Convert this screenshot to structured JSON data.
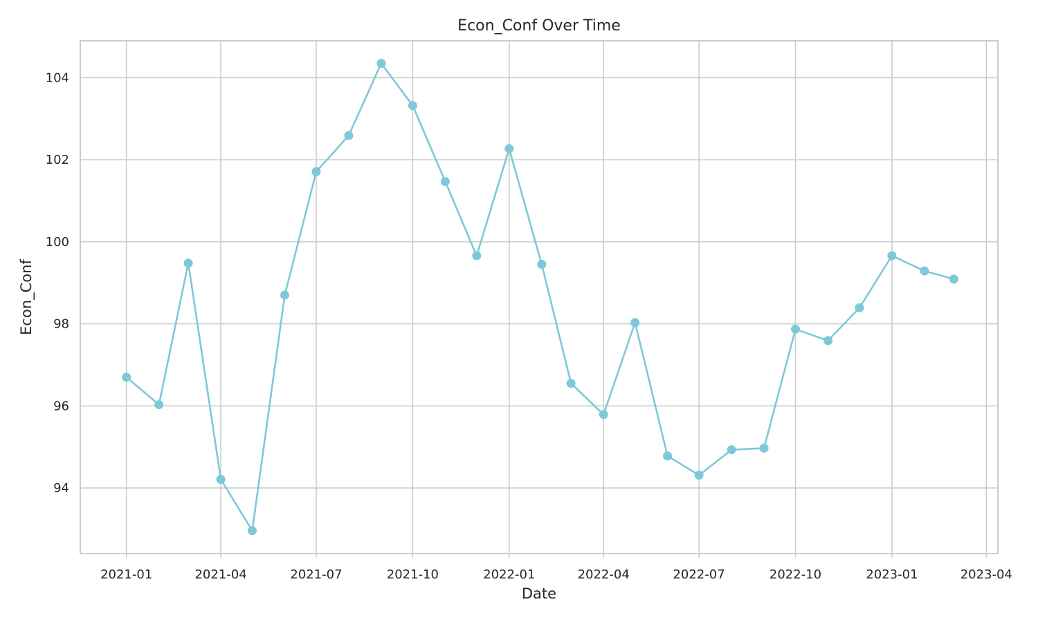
{
  "chart_data": {
    "type": "line",
    "title": "Econ_Conf Over Time",
    "xlabel": "Date",
    "ylabel": "Econ_Conf",
    "x": [
      "2021-01-01",
      "2021-02-01",
      "2021-03-01",
      "2021-04-01",
      "2021-05-01",
      "2021-06-01",
      "2021-07-01",
      "2021-08-01",
      "2021-09-01",
      "2021-10-01",
      "2021-11-01",
      "2021-12-01",
      "2022-01-01",
      "2022-02-01",
      "2022-03-01",
      "2022-04-01",
      "2022-05-01",
      "2022-06-01",
      "2022-07-01",
      "2022-08-01",
      "2022-09-01",
      "2022-10-01",
      "2022-11-01",
      "2022-12-01",
      "2023-01-01",
      "2023-02-01",
      "2023-03-01"
    ],
    "series": [
      {
        "values": [
          96.7,
          96.03,
          99.48,
          94.21,
          92.96,
          98.7,
          101.71,
          102.59,
          104.35,
          103.32,
          101.47,
          99.66,
          102.27,
          99.45,
          96.55,
          95.79,
          98.03,
          94.78,
          94.31,
          94.93,
          94.97,
          97.87,
          97.59,
          98.39,
          99.66,
          99.29,
          99.09
        ],
        "color": "#7ec8d8",
        "marker": "circle"
      }
    ],
    "x_ticks": [
      "2021-01",
      "2021-04",
      "2021-07",
      "2021-10",
      "2022-01",
      "2022-04",
      "2022-07",
      "2022-10",
      "2023-01",
      "2023-04"
    ],
    "y_ticks": [
      94,
      96,
      98,
      100,
      102,
      104
    ],
    "xlim": [
      "2020-11-18",
      "2023-04-12"
    ],
    "ylim": [
      92.4,
      104.9
    ],
    "grid": true,
    "legend": "none",
    "colors": {
      "grid": "#cccccc",
      "text": "#262626",
      "background": "#ffffff"
    }
  }
}
